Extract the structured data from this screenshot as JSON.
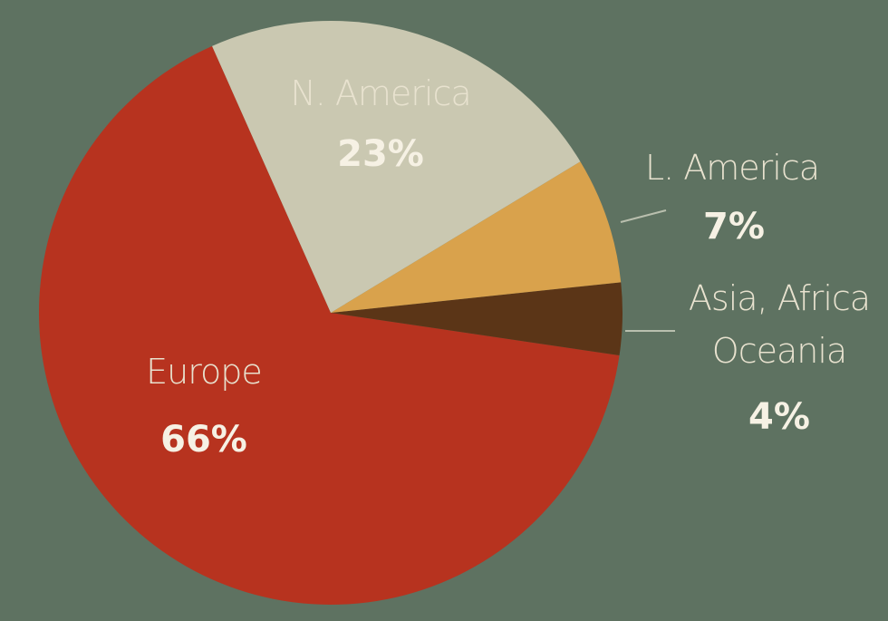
{
  "chart_data": {
    "type": "pie",
    "categories": [
      "N. America",
      "L. America",
      "Asia, Africa Oceania",
      "Europe"
    ],
    "values": [
      23,
      7,
      4,
      66
    ],
    "value_labels": [
      "23%",
      "7%",
      "4%",
      "66%"
    ],
    "colors": [
      "#cac8b1",
      "#d9a24c",
      "#5b3517",
      "#b7331f"
    ]
  }
}
